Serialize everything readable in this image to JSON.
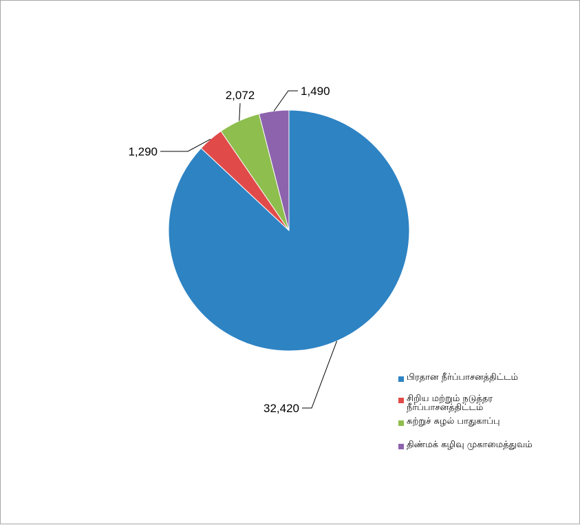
{
  "chart_data": {
    "type": "pie",
    "categories": [
      "பிரதான நீர்ப்பாசனத்திட்டம்",
      "சிறிய மற்றும் நடுத்தர நீர்ப்பாசனத்திட்டம்",
      "சுற்றுச் சுழல் பாதுகாப்பு",
      "திண்மக் கழிவு முகாமைத்துவம்"
    ],
    "values": [
      32420,
      1290,
      2072,
      1490
    ],
    "data_labels": [
      "32,420",
      "1,290",
      "2,072",
      "1,490"
    ],
    "colors": [
      "#2e83c3",
      "#e04b4a",
      "#8ebe4e",
      "#8d63ad"
    ],
    "legend_position": "right",
    "start_angle": "12 o'clock",
    "direction": "clockwise"
  }
}
